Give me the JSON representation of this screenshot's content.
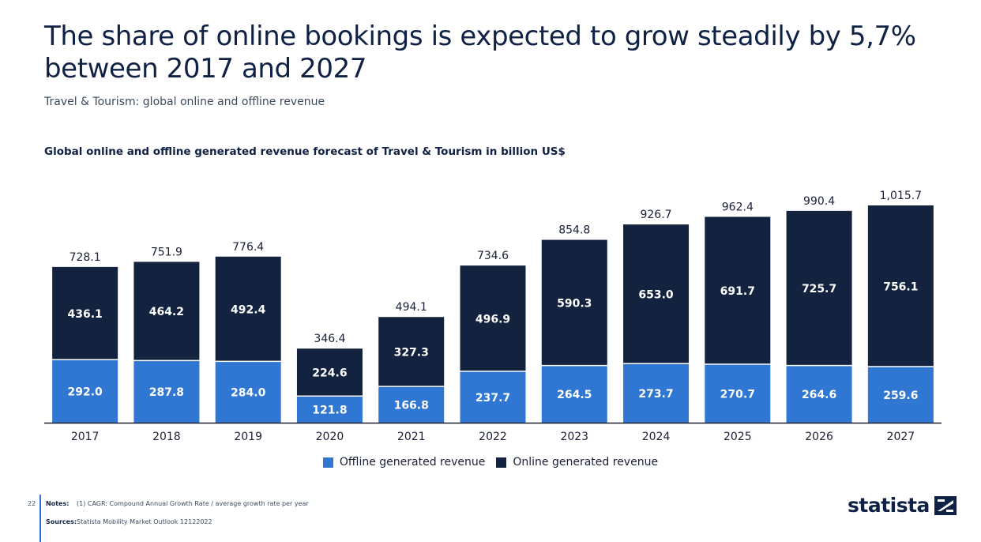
{
  "header": {
    "headline": "The share of online bookings is expected to grow steadily by 5,7% between 2017 and 2027",
    "subheadline": "Travel & Tourism: global online and offline revenue"
  },
  "chart_data": {
    "type": "bar",
    "stacked": true,
    "title": "Global online and offline generated revenue forecast of Travel & Tourism in billion US$",
    "categories": [
      "2017",
      "2018",
      "2019",
      "2020",
      "2021",
      "2022",
      "2023",
      "2024",
      "2025",
      "2026",
      "2027"
    ],
    "series": [
      {
        "name": "Offline generated revenue",
        "color": "#2f77d3",
        "values": [
          292.0,
          287.8,
          284.0,
          121.8,
          166.8,
          237.7,
          264.5,
          273.7,
          270.7,
          264.6,
          259.6
        ],
        "labels": [
          "292.0",
          "287.8",
          "284.0",
          "121.8",
          "166.8",
          "237.7",
          "264.5",
          "273.7",
          "270.7",
          "264.6",
          "259.6"
        ]
      },
      {
        "name": "Online generated revenue",
        "color": "#13233f",
        "values": [
          436.1,
          464.2,
          492.4,
          224.6,
          327.3,
          496.9,
          590.3,
          653.0,
          691.7,
          725.7,
          756.1
        ],
        "labels": [
          "436.1",
          "464.2",
          "492.4",
          "224.6",
          "327.3",
          "496.9",
          "590.3",
          "653.0",
          "691.7",
          "725.7",
          "756.1"
        ]
      }
    ],
    "totals": [
      728.1,
      751.9,
      776.4,
      346.4,
      494.1,
      734.6,
      854.8,
      926.7,
      962.4,
      990.4,
      1015.7
    ],
    "total_labels": [
      "728.1",
      "751.9",
      "776.4",
      "346.4",
      "494.1",
      "734.6",
      "854.8",
      "926.7",
      "962.4",
      "990.4",
      "1,015.7"
    ],
    "ylim": [
      0,
      1015.7
    ],
    "grid": false,
    "legend_position": "bottom-center",
    "xlabel": "",
    "ylabel": ""
  },
  "footer": {
    "page_number": "22",
    "notes_label": "Notes:",
    "notes_text": "(1) CAGR: Compound Annual Growth Rate / average growth rate per year",
    "sources_label": "Sources:",
    "sources_text": "Statista Mobility Market Outlook  12122022",
    "logo_text": "statista"
  }
}
